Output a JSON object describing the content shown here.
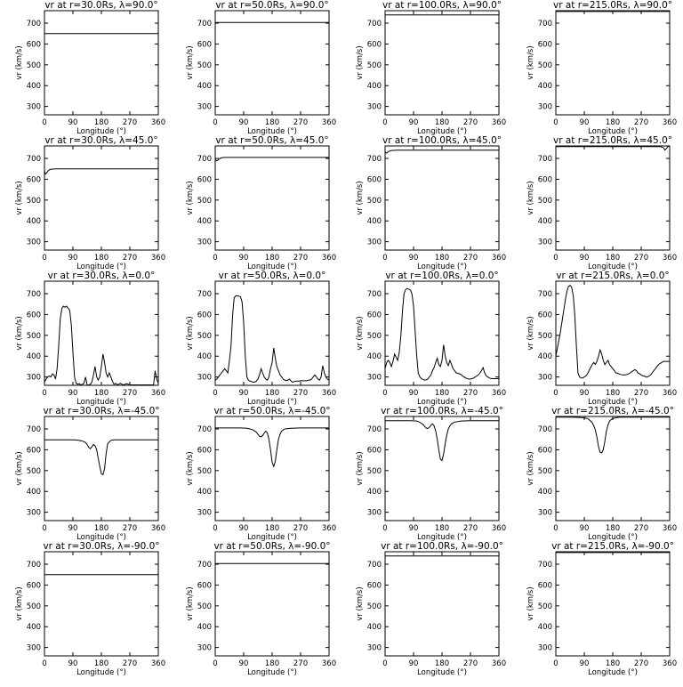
{
  "chart_data": {
    "type": "line",
    "layout": "5x4 grid of panels",
    "xlabel": "Longitude (°)",
    "ylabel": "vr (km/s)",
    "xlim": [
      0,
      360
    ],
    "ylim": [
      260,
      760
    ],
    "xticks": [
      0,
      90,
      180,
      270,
      360
    ],
    "yticks": [
      300,
      400,
      500,
      600,
      700
    ],
    "panels": [
      {
        "title": "vr at r=30.0Rs, λ=90.0°",
        "x": [
          0,
          360
        ],
        "y": [
          650,
          650
        ]
      },
      {
        "title": "vr at r=50.0Rs, λ=90.0°",
        "x": [
          0,
          360
        ],
        "y": [
          703,
          703
        ]
      },
      {
        "title": "vr at r=100.0Rs, λ=90.0°",
        "x": [
          0,
          360
        ],
        "y": [
          740,
          740
        ]
      },
      {
        "title": "vr at r=215.0Rs, λ=90.0°",
        "x": [
          0,
          360
        ],
        "y": [
          756,
          756
        ]
      },
      {
        "title": "vr at r=30.0Rs, λ=45.0°",
        "x": [
          0,
          3,
          8,
          12,
          18,
          25,
          40,
          60,
          100,
          200,
          300,
          360
        ],
        "y": [
          640,
          625,
          632,
          642,
          647,
          649,
          650,
          650,
          650,
          650,
          650,
          650
        ]
      },
      {
        "title": "vr at r=50.0Rs, λ=45.0°",
        "x": [
          0,
          5,
          10,
          15,
          22,
          30,
          45,
          60,
          100,
          200,
          300,
          360
        ],
        "y": [
          695,
          688,
          694,
          700,
          704,
          705,
          705,
          705,
          705,
          705,
          705,
          705
        ]
      },
      {
        "title": "vr at r=100.0Rs, λ=45.0°",
        "x": [
          0,
          5,
          10,
          20,
          40,
          100,
          200,
          300,
          360
        ],
        "y": [
          732,
          725,
          733,
          738,
          740,
          740,
          740,
          740,
          740
        ]
      },
      {
        "title": "vr at r=215.0Rs, λ=45.0°",
        "x": [
          0,
          50,
          100,
          200,
          300,
          330,
          340,
          345,
          350,
          355,
          360
        ],
        "y": [
          757,
          757,
          757,
          757,
          757,
          757,
          752,
          740,
          748,
          758,
          758
        ]
      },
      {
        "title": "vr at r=30.0Rs, λ=0.0°",
        "x": [
          0,
          5,
          10,
          15,
          20,
          25,
          30,
          35,
          40,
          45,
          50,
          55,
          60,
          65,
          70,
          75,
          80,
          85,
          90,
          95,
          100,
          105,
          110,
          115,
          120,
          125,
          130,
          135,
          140,
          145,
          150,
          155,
          160,
          165,
          170,
          175,
          180,
          185,
          190,
          195,
          200,
          205,
          210,
          215,
          220,
          225,
          230,
          235,
          240,
          245,
          250,
          255,
          260,
          265,
          270,
          275,
          280,
          285,
          290,
          295,
          300,
          305,
          310,
          315,
          320,
          325,
          330,
          335,
          340,
          345,
          350,
          355,
          360
        ],
        "y": [
          275,
          290,
          300,
          305,
          300,
          315,
          310,
          290,
          340,
          450,
          580,
          630,
          640,
          635,
          640,
          630,
          620,
          550,
          420,
          300,
          270,
          265,
          268,
          262,
          265,
          270,
          300,
          260,
          262,
          265,
          275,
          310,
          350,
          300,
          285,
          300,
          350,
          410,
          370,
          320,
          300,
          320,
          300,
          280,
          265,
          270,
          262,
          265,
          270,
          265,
          262,
          265,
          268,
          265,
          262,
          262,
          262,
          262,
          262,
          262,
          262,
          262,
          262,
          262,
          262,
          262,
          262,
          262,
          262,
          262,
          330,
          290,
          270
        ]
      },
      {
        "title": "vr at r=50.0Rs, λ=0.0°",
        "x": [
          0,
          5,
          10,
          15,
          20,
          25,
          30,
          35,
          40,
          45,
          50,
          55,
          60,
          65,
          70,
          75,
          80,
          85,
          90,
          95,
          100,
          105,
          110,
          115,
          120,
          125,
          130,
          135,
          140,
          145,
          150,
          155,
          160,
          165,
          170,
          175,
          180,
          185,
          190,
          195,
          200,
          205,
          210,
          215,
          220,
          225,
          230,
          235,
          240,
          245,
          250,
          255,
          260,
          265,
          270,
          275,
          280,
          285,
          290,
          295,
          300,
          305,
          310,
          315,
          320,
          325,
          330,
          335,
          340,
          345,
          350,
          355,
          360
        ],
        "y": [
          285,
          290,
          300,
          310,
          320,
          330,
          340,
          330,
          320,
          380,
          450,
          600,
          680,
          690,
          690,
          688,
          685,
          660,
          560,
          400,
          300,
          285,
          280,
          278,
          275,
          276,
          280,
          290,
          310,
          340,
          320,
          300,
          290,
          285,
          300,
          340,
          370,
          440,
          390,
          350,
          330,
          310,
          300,
          290,
          285,
          283,
          285,
          290,
          280,
          275,
          278,
          280,
          280,
          280,
          282,
          282,
          282,
          282,
          282,
          285,
          285,
          290,
          300,
          310,
          300,
          290,
          285,
          300,
          355,
          320,
          300,
          290,
          285
        ]
      },
      {
        "title": "vr at r=100.0Rs, λ=0.0°",
        "x": [
          0,
          5,
          10,
          15,
          20,
          25,
          30,
          35,
          40,
          45,
          50,
          55,
          60,
          65,
          70,
          75,
          80,
          85,
          90,
          95,
          100,
          105,
          110,
          115,
          120,
          125,
          130,
          135,
          140,
          145,
          150,
          155,
          160,
          165,
          170,
          175,
          180,
          185,
          190,
          195,
          200,
          205,
          210,
          215,
          220,
          225,
          230,
          235,
          240,
          245,
          250,
          255,
          260,
          265,
          270,
          275,
          280,
          285,
          290,
          295,
          300,
          305,
          310,
          315,
          320,
          325,
          330,
          335,
          340,
          345,
          350,
          355,
          360
        ],
        "y": [
          340,
          370,
          380,
          370,
          350,
          375,
          410,
          395,
          380,
          420,
          500,
          620,
          700,
          720,
          725,
          722,
          718,
          700,
          640,
          520,
          400,
          320,
          300,
          292,
          288,
          285,
          286,
          290,
          300,
          310,
          330,
          345,
          370,
          390,
          360,
          350,
          380,
          455,
          400,
          370,
          355,
          380,
          360,
          340,
          330,
          320,
          318,
          315,
          312,
          305,
          300,
          295,
          292,
          290,
          290,
          292,
          295,
          300,
          305,
          310,
          320,
          330,
          345,
          320,
          305,
          300,
          295,
          293,
          292,
          292,
          292,
          292,
          292
        ]
      },
      {
        "title": "vr at r=215.0Rs, λ=0.0°",
        "x": [
          0,
          5,
          10,
          15,
          20,
          25,
          30,
          35,
          40,
          45,
          50,
          55,
          60,
          65,
          70,
          75,
          80,
          85,
          90,
          95,
          100,
          105,
          110,
          115,
          120,
          125,
          130,
          135,
          140,
          145,
          150,
          155,
          160,
          165,
          170,
          175,
          180,
          185,
          190,
          195,
          200,
          205,
          210,
          215,
          220,
          225,
          230,
          235,
          240,
          245,
          250,
          255,
          260,
          265,
          270,
          275,
          280,
          285,
          290,
          295,
          300,
          305,
          310,
          315,
          320,
          325,
          330,
          335,
          340,
          345,
          350,
          355,
          360
        ],
        "y": [
          400,
          440,
          480,
          520,
          570,
          620,
          670,
          710,
          735,
          740,
          730,
          690,
          600,
          450,
          320,
          300,
          295,
          295,
          300,
          305,
          315,
          330,
          345,
          360,
          370,
          360,
          375,
          400,
          430,
          410,
          380,
          360,
          370,
          380,
          360,
          350,
          340,
          330,
          320,
          318,
          315,
          312,
          310,
          310,
          310,
          312,
          315,
          320,
          325,
          330,
          335,
          330,
          320,
          315,
          310,
          305,
          305,
          300,
          300,
          305,
          310,
          320,
          330,
          340,
          350,
          360,
          365,
          370,
          375,
          375,
          375,
          375,
          375
        ]
      },
      {
        "title": "vr at r=30.0Rs, λ=-45.0°",
        "x": [
          0,
          20,
          40,
          60,
          80,
          100,
          110,
          120,
          130,
          135,
          140,
          145,
          150,
          155,
          160,
          165,
          170,
          175,
          180,
          185,
          190,
          195,
          200,
          210,
          220,
          240,
          270,
          300,
          330,
          360
        ],
        "y": [
          648,
          648,
          648,
          648,
          648,
          647,
          645,
          642,
          635,
          625,
          612,
          605,
          615,
          625,
          620,
          600,
          560,
          520,
          485,
          480,
          510,
          580,
          630,
          645,
          648,
          648,
          648,
          648,
          648,
          648
        ]
      },
      {
        "title": "vr at r=50.0Rs, λ=-45.0°",
        "x": [
          0,
          20,
          40,
          60,
          80,
          100,
          110,
          120,
          130,
          135,
          140,
          145,
          150,
          155,
          160,
          165,
          170,
          175,
          180,
          185,
          190,
          195,
          200,
          205,
          210,
          220,
          240,
          270,
          300,
          330,
          360
        ],
        "y": [
          705,
          705,
          705,
          705,
          705,
          703,
          700,
          695,
          685,
          675,
          665,
          662,
          668,
          680,
          690,
          680,
          650,
          600,
          540,
          520,
          545,
          600,
          650,
          675,
          690,
          700,
          703,
          705,
          705,
          705,
          705
        ]
      },
      {
        "title": "vr at r=100.0Rs, λ=-45.0°",
        "x": [
          0,
          20,
          40,
          60,
          80,
          100,
          110,
          120,
          125,
          130,
          135,
          140,
          145,
          150,
          155,
          160,
          165,
          170,
          175,
          180,
          185,
          190,
          195,
          200,
          205,
          210,
          220,
          240,
          270,
          300,
          330,
          360
        ],
        "y": [
          740,
          740,
          740,
          740,
          740,
          738,
          732,
          722,
          712,
          705,
          702,
          708,
          718,
          725,
          715,
          690,
          650,
          600,
          555,
          548,
          580,
          630,
          670,
          700,
          715,
          725,
          733,
          738,
          740,
          740,
          740,
          740
        ]
      },
      {
        "title": "vr at r=215.0Rs, λ=-45.0°",
        "x": [
          0,
          20,
          40,
          60,
          80,
          90,
          100,
          105,
          110,
          115,
          120,
          125,
          130,
          135,
          140,
          145,
          150,
          155,
          160,
          165,
          170,
          175,
          180,
          190,
          200,
          220,
          240,
          270,
          300,
          330,
          360
        ],
        "y": [
          757,
          757,
          757,
          756,
          755,
          753,
          750,
          745,
          738,
          730,
          715,
          695,
          660,
          615,
          588,
          585,
          600,
          640,
          690,
          720,
          738,
          745,
          750,
          754,
          756,
          757,
          757,
          757,
          757,
          757,
          757
        ]
      },
      {
        "title": "vr at r=30.0Rs, λ=-90.0°",
        "x": [
          0,
          360
        ],
        "y": [
          650,
          650
        ]
      },
      {
        "title": "vr at r=50.0Rs, λ=-90.0°",
        "x": [
          0,
          360
        ],
        "y": [
          703,
          703
        ]
      },
      {
        "title": "vr at r=100.0Rs, λ=-90.0°",
        "x": [
          0,
          360
        ],
        "y": [
          740,
          740
        ]
      },
      {
        "title": "vr at r=215.0Rs, λ=-90.0°",
        "x": [
          0,
          360
        ],
        "y": [
          756,
          756
        ]
      }
    ]
  }
}
